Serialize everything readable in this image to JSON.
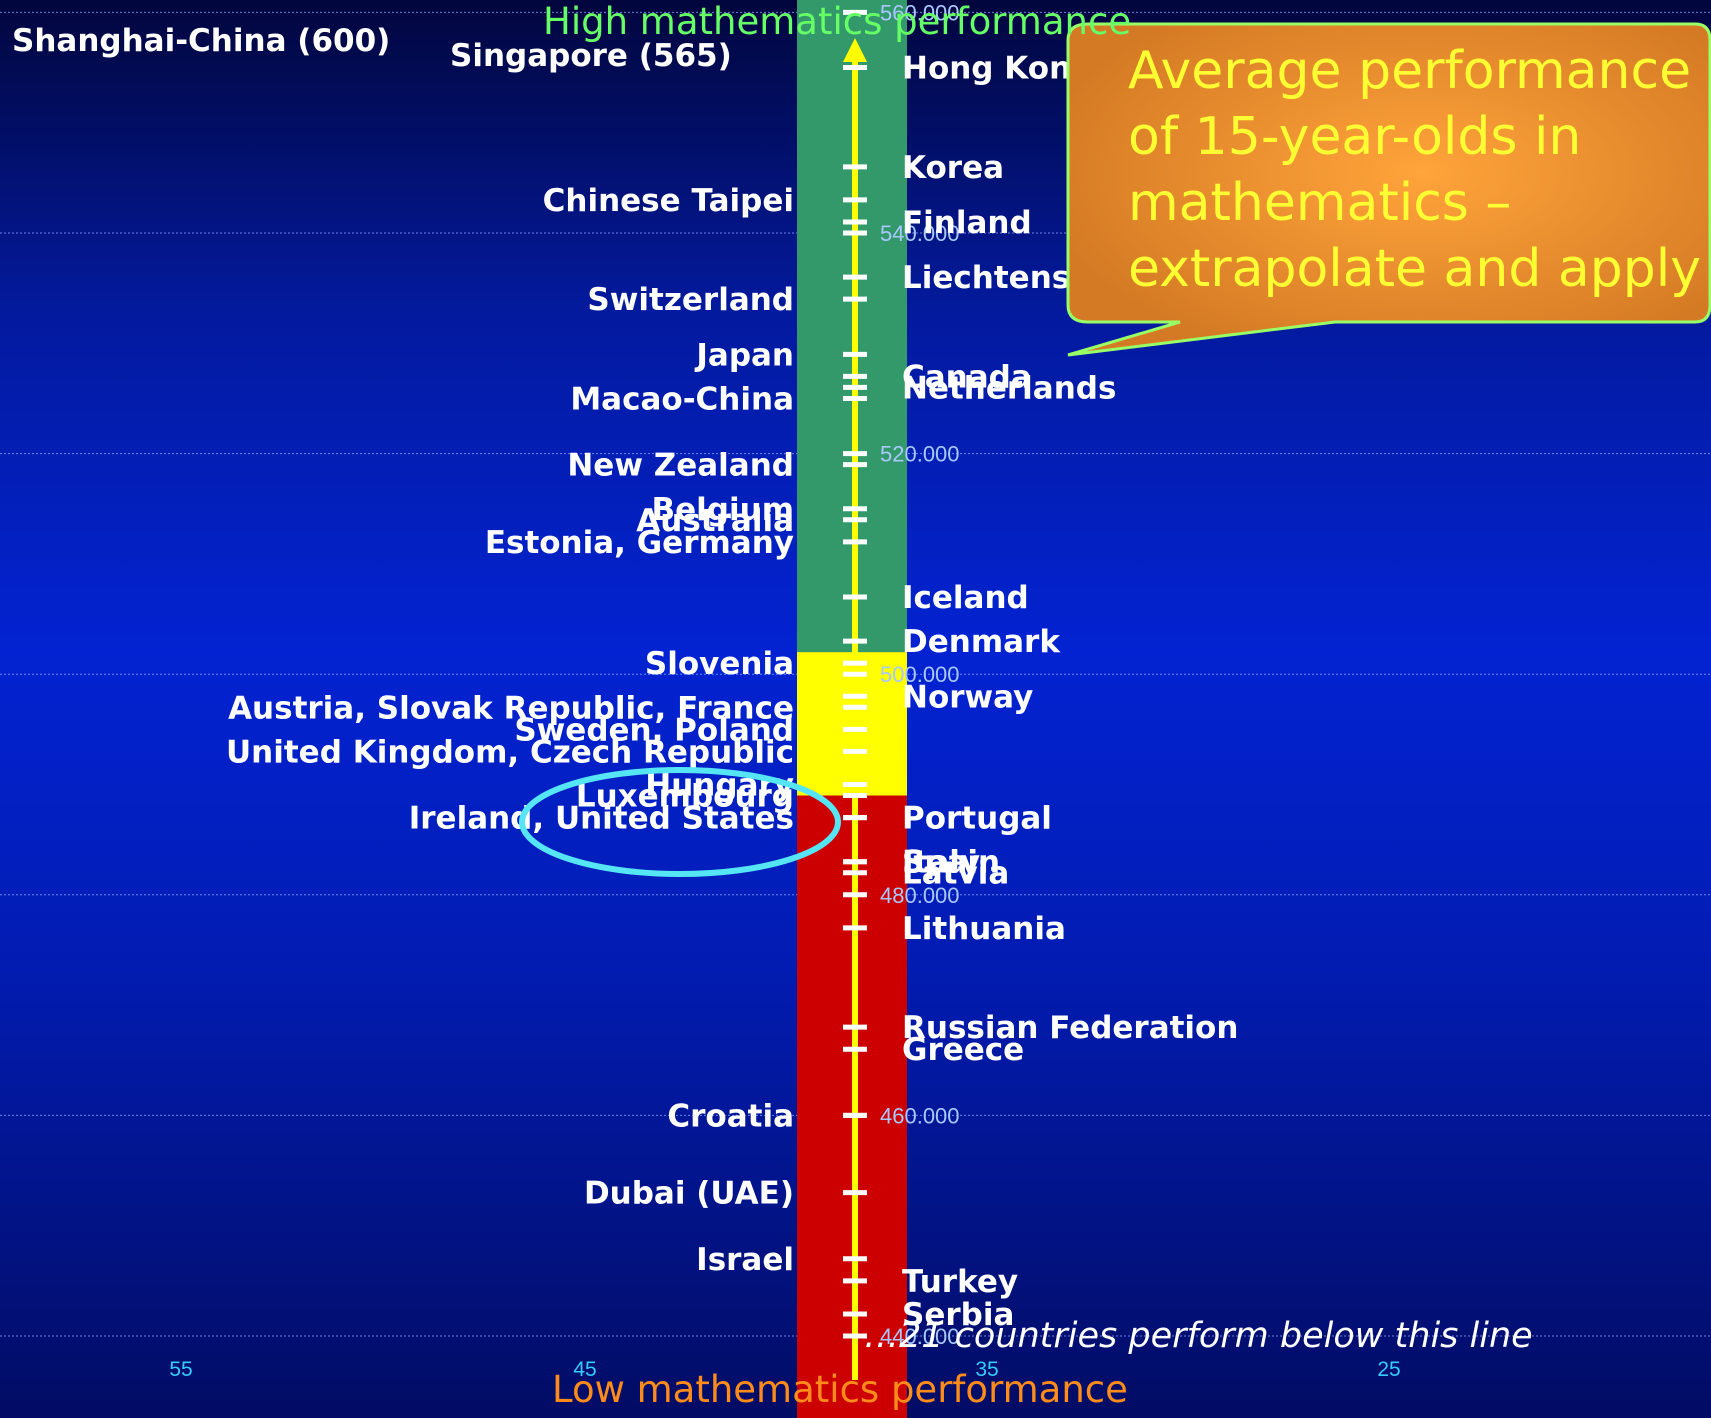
{
  "chart_data": {
    "type": "scatter",
    "title": "",
    "subtitle": "",
    "ylabel_top": "High mathematics performance",
    "ylabel_bottom": "Low mathematics performance",
    "ylim": [
      440,
      560
    ],
    "y_ticks": [
      440,
      460,
      480,
      500,
      520,
      540,
      560
    ],
    "y_tick_labels": [
      "440.000",
      "460.000",
      "480.000",
      "500.000",
      "520.000",
      "540.000",
      "560.000"
    ],
    "x_ticks": [
      55,
      45,
      35,
      25
    ],
    "x_tick_labels": [
      "55",
      "45",
      "35",
      "25"
    ],
    "grid": true,
    "bands": [
      {
        "name": "high",
        "from": 502,
        "to": 560,
        "color": "#33996a"
      },
      {
        "name": "average",
        "from": 489,
        "to": 502,
        "color": "#ffff00"
      },
      {
        "name": "low",
        "from": 440,
        "to": 489,
        "color": "#cc0000"
      }
    ],
    "points": [
      {
        "label": "Hong Kong-China",
        "y": 555,
        "side": "right"
      },
      {
        "label": "Korea",
        "y": 546,
        "side": "right"
      },
      {
        "label": "Chinese Taipei",
        "y": 543,
        "side": "left"
      },
      {
        "label": "Finland",
        "y": 541,
        "side": "right"
      },
      {
        "label": "Liechtenstein",
        "y": 536,
        "side": "right"
      },
      {
        "label": "Switzerland",
        "y": 534,
        "side": "left"
      },
      {
        "label": "Japan",
        "y": 529,
        "side": "left"
      },
      {
        "label": "Canada",
        "y": 527,
        "side": "right"
      },
      {
        "label": "Netherlands",
        "y": 526,
        "side": "right"
      },
      {
        "label": "Macao-China",
        "y": 525,
        "side": "left"
      },
      {
        "label": "New Zealand",
        "y": 519,
        "side": "left"
      },
      {
        "label": "Belgium",
        "y": 515,
        "side": "left"
      },
      {
        "label": "Australia",
        "y": 514,
        "side": "left"
      },
      {
        "label": "Estonia, Germany",
        "y": 512,
        "side": "left"
      },
      {
        "label": "Iceland",
        "y": 507,
        "side": "right"
      },
      {
        "label": "Denmark",
        "y": 503,
        "side": "right"
      },
      {
        "label": "Slovenia",
        "y": 501,
        "side": "left"
      },
      {
        "label": "Norway",
        "y": 498,
        "side": "right"
      },
      {
        "label": "Austria, Slovak Republic, France",
        "y": 497,
        "side": "left"
      },
      {
        "label": "Sweden, Poland",
        "y": 495,
        "side": "left"
      },
      {
        "label": "United Kingdom, Czech Republic",
        "y": 493,
        "side": "left"
      },
      {
        "label": "Hungary",
        "y": 490,
        "side": "left"
      },
      {
        "label": "Luxembourg",
        "y": 489,
        "side": "left"
      },
      {
        "label": "Ireland, United States",
        "y": 487,
        "side": "left"
      },
      {
        "label": "Portugal",
        "y": 487,
        "side": "right"
      },
      {
        "label": "Spain",
        "y": 483,
        "side": "right"
      },
      {
        "label": "Italy",
        "y": 483,
        "side": "right"
      },
      {
        "label": "Latvia",
        "y": 482,
        "side": "right"
      },
      {
        "label": "Lithuania",
        "y": 477,
        "side": "right"
      },
      {
        "label": "Russian Federation",
        "y": 468,
        "side": "right"
      },
      {
        "label": "Greece",
        "y": 466,
        "side": "right"
      },
      {
        "label": "Croatia",
        "y": 460,
        "side": "left"
      },
      {
        "label": "Dubai (UAE)",
        "y": 453,
        "side": "left"
      },
      {
        "label": "Israel",
        "y": 447,
        "side": "left"
      },
      {
        "label": "Turkey",
        "y": 445,
        "side": "right"
      },
      {
        "label": "Serbia",
        "y": 442,
        "side": "right"
      }
    ],
    "off_scale": [
      {
        "label": "Shanghai-China (600)",
        "y": 600
      },
      {
        "label": "Singapore (565)",
        "y": 565
      }
    ],
    "annotations": {
      "callout": "Average performance of 15-year-olds in mathematics – extrapolate and apply",
      "below_line_note": "…21 countries perform below this line",
      "highlight": "United States"
    }
  },
  "colors": {
    "axis_arrow": "#ffff00",
    "tick_marks": "#ffffff",
    "highlight_ellipse": "#55e5f5",
    "callout_fill": "#e28a2a",
    "callout_border": "#99ff66",
    "grid": "#8aa0ff"
  }
}
